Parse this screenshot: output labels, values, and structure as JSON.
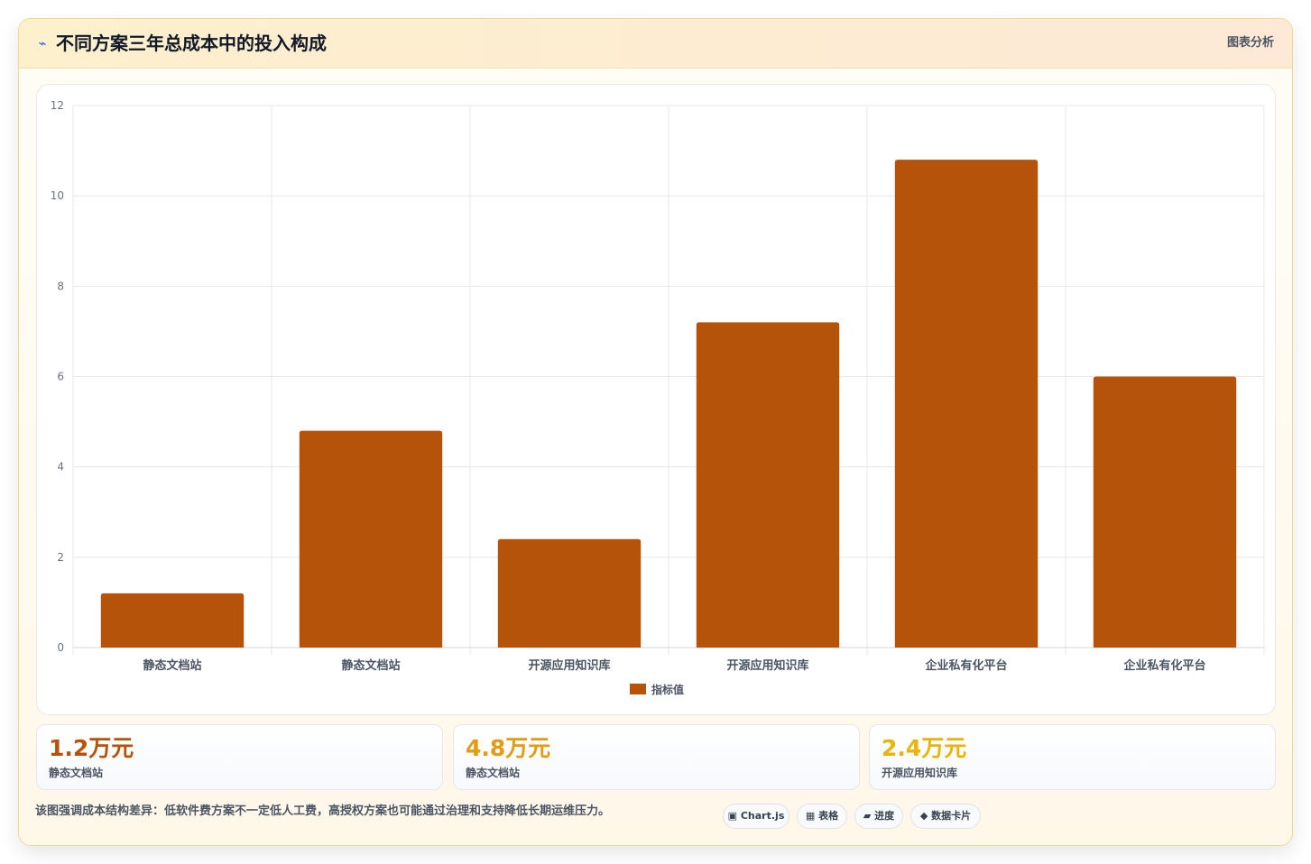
{
  "header": {
    "icon": "lightning-icon",
    "title": "不同方案三年总成本中的投入构成",
    "tag": "图表分析"
  },
  "chart_data": {
    "type": "bar",
    "categories": [
      "静态文档站",
      "静态文档站",
      "开源应用知识库",
      "开源应用知识库",
      "企业私有化平台",
      "企业私有化平台"
    ],
    "series": [
      {
        "name": "指标值",
        "values": [
          1.2,
          4.8,
          2.4,
          7.2,
          10.8,
          6.0
        ]
      }
    ],
    "ylim": [
      0,
      12
    ],
    "yticks": [
      "0",
      "2",
      "4",
      "6",
      "8",
      "10",
      "12"
    ],
    "grid": true,
    "legend_position": "bottom",
    "bar_color": "#b45309"
  },
  "stats": [
    {
      "value": "1.2万元",
      "label": "静态文档站",
      "color": "#b45309"
    },
    {
      "value": "4.8万元",
      "label": "静态文档站",
      "color": "#e49b0f"
    },
    {
      "value": "2.4万元",
      "label": "开源应用知识库",
      "color": "#eab308"
    }
  ],
  "note": "该图强调成本结构差异：低软件费方案不一定低人工费，高授权方案也可能通过治理和支持降低长期运维压力。",
  "chips": [
    {
      "icon": "square-icon",
      "glyph": "▣",
      "label": "Chart.js"
    },
    {
      "icon": "table-icon",
      "glyph": "▦",
      "label": "表格"
    },
    {
      "icon": "progress-icon",
      "glyph": "▰",
      "label": "进度"
    },
    {
      "icon": "diamond-icon",
      "glyph": "◆",
      "label": "数据卡片"
    }
  ]
}
